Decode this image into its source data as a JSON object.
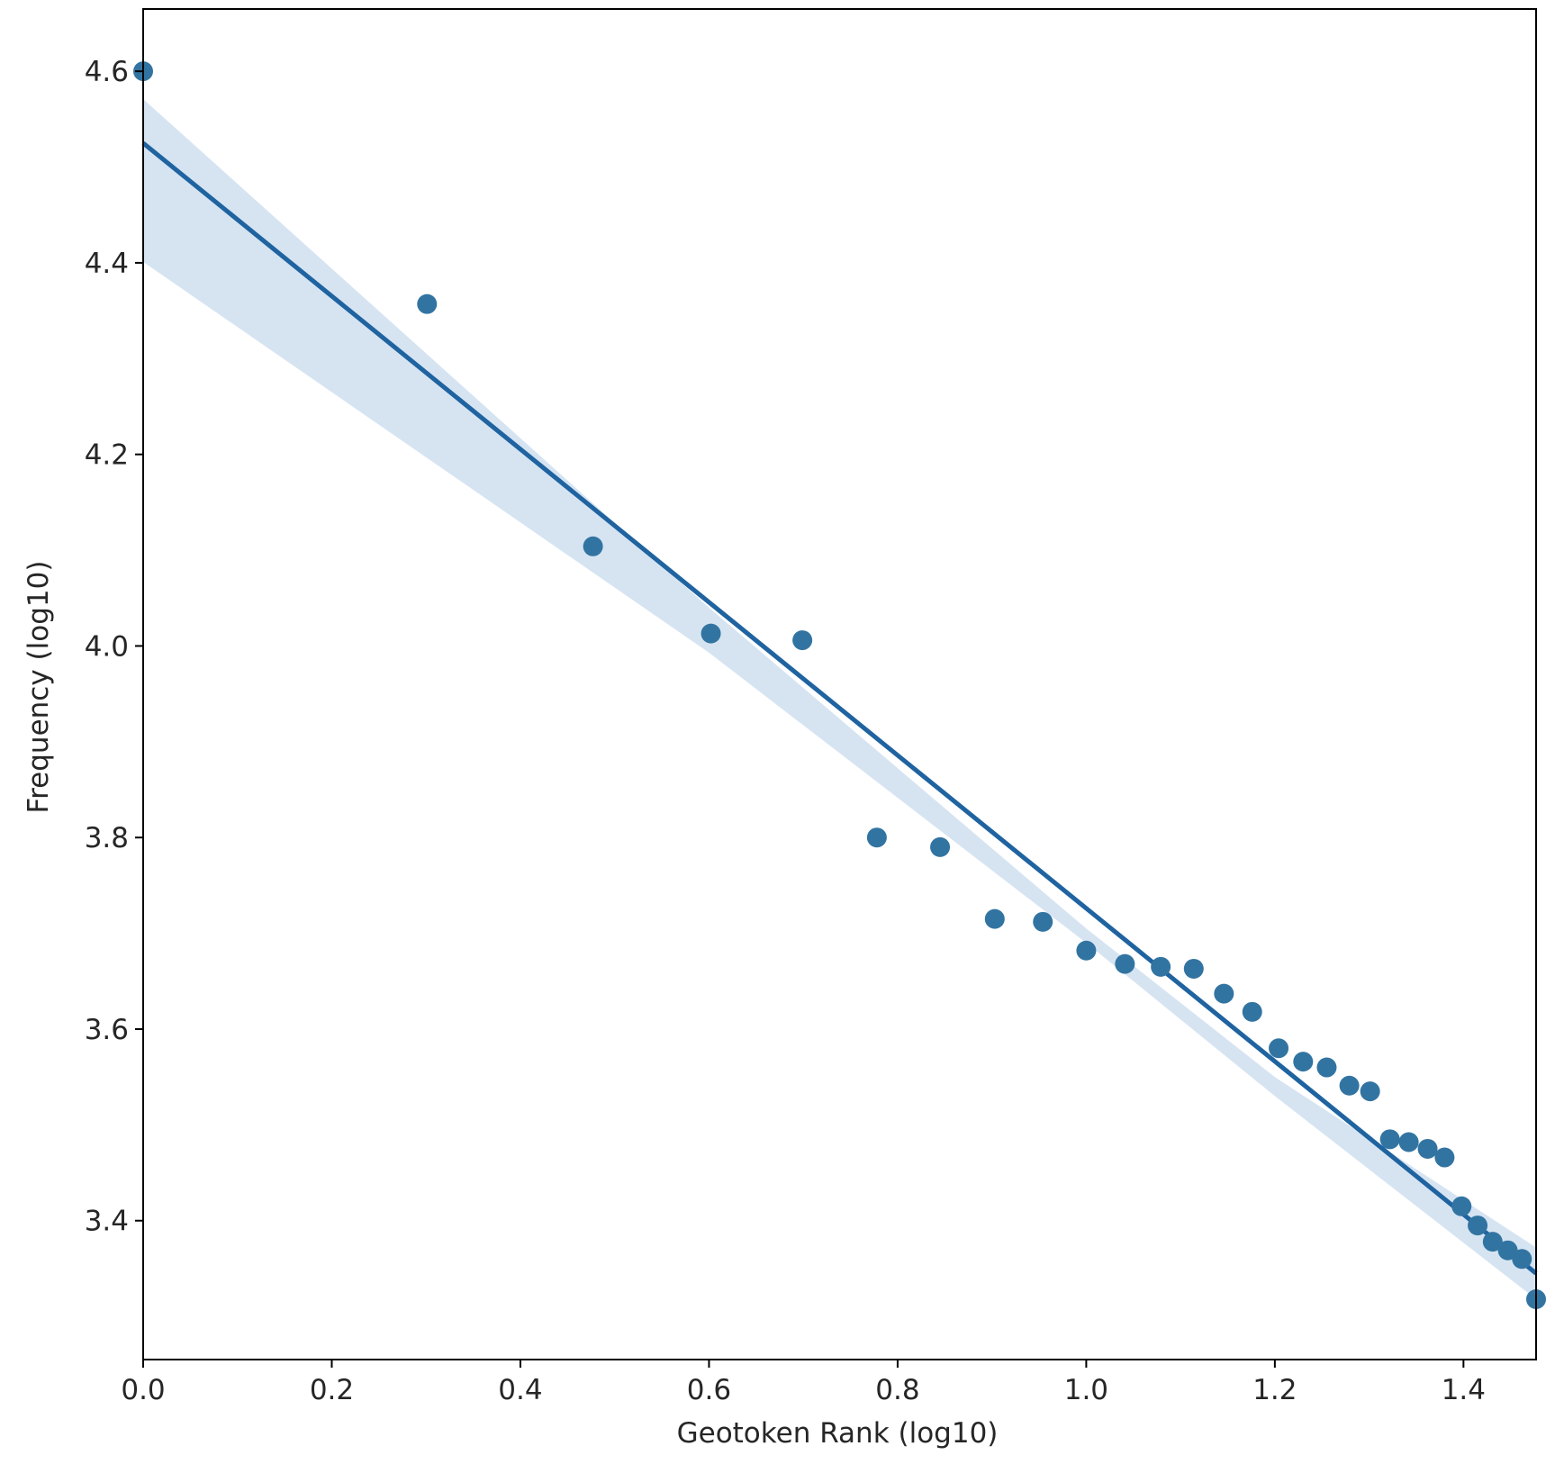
{
  "chart_data": {
    "type": "scatter",
    "title": "",
    "xlabel": "Geotoken Rank (log10)",
    "ylabel": "Frequency (log10)",
    "xlim": [
      0.0,
      1.477
    ],
    "ylim": [
      3.255,
      4.665
    ],
    "x_ticks": [
      "0.0",
      "0.2",
      "0.4",
      "0.6",
      "0.8",
      "1.0",
      "1.2",
      "1.4"
    ],
    "y_ticks": [
      "3.4",
      "3.6",
      "3.8",
      "4.0",
      "4.2",
      "4.4",
      "4.6"
    ],
    "grid": false,
    "legend": "none",
    "colors": {
      "points": "#3274a1",
      "line": "#1f63a0",
      "band": "#d6e4f2",
      "axis": "#000000"
    },
    "regression": {
      "start": [
        0.0,
        4.525
      ],
      "end": [
        1.477,
        3.345
      ],
      "ci_upper": [
        [
          0.0,
          4.571
        ],
        [
          0.6,
          4.04
        ],
        [
          1.0,
          3.705
        ],
        [
          1.2,
          3.55
        ],
        [
          1.477,
          3.372
        ]
      ],
      "ci_lower": [
        [
          0.0,
          4.401
        ],
        [
          0.6,
          3.993
        ],
        [
          1.0,
          3.69
        ],
        [
          1.2,
          3.53
        ],
        [
          1.477,
          3.318
        ]
      ]
    },
    "series": [
      {
        "points": [
          [
            0.0,
            4.6
          ],
          [
            0.301,
            4.357
          ],
          [
            0.477,
            4.104
          ],
          [
            0.602,
            4.013
          ],
          [
            0.699,
            4.006
          ],
          [
            0.778,
            3.8
          ],
          [
            0.845,
            3.79
          ],
          [
            0.903,
            3.715
          ],
          [
            0.954,
            3.712
          ],
          [
            1.0,
            3.682
          ],
          [
            1.041,
            3.668
          ],
          [
            1.079,
            3.665
          ],
          [
            1.114,
            3.663
          ],
          [
            1.146,
            3.637
          ],
          [
            1.176,
            3.618
          ],
          [
            1.204,
            3.58
          ],
          [
            1.23,
            3.566
          ],
          [
            1.255,
            3.56
          ],
          [
            1.279,
            3.541
          ],
          [
            1.301,
            3.535
          ],
          [
            1.322,
            3.485
          ],
          [
            1.342,
            3.482
          ],
          [
            1.362,
            3.475
          ],
          [
            1.38,
            3.466
          ],
          [
            1.398,
            3.415
          ],
          [
            1.415,
            3.395
          ],
          [
            1.431,
            3.378
          ],
          [
            1.447,
            3.369
          ],
          [
            1.462,
            3.36
          ],
          [
            1.477,
            3.318
          ]
        ]
      }
    ]
  }
}
